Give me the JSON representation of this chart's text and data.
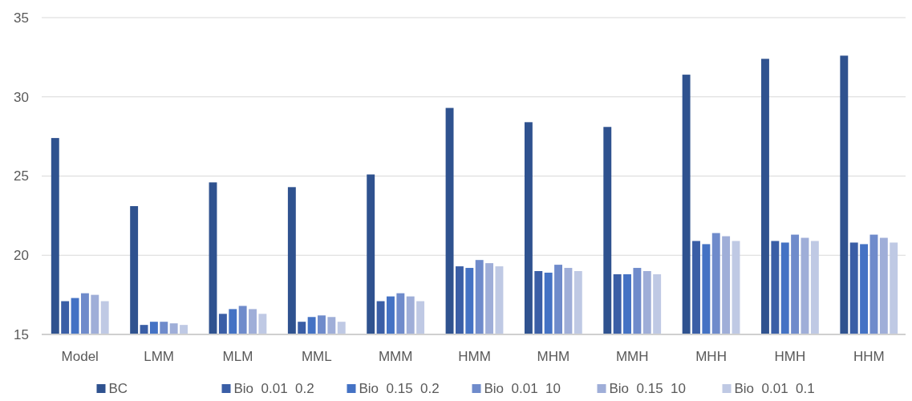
{
  "chart_data": {
    "type": "bar",
    "categories": [
      "Model",
      "LMM",
      "MLM",
      "MML",
      "MMM",
      "HMM",
      "MHM",
      "MMH",
      "MHH",
      "HMH",
      "HHM"
    ],
    "series": [
      {
        "name": "BC",
        "color": "#2f528f",
        "values": [
          27.4,
          23.1,
          24.6,
          24.3,
          25.1,
          29.3,
          28.4,
          28.1,
          31.4,
          32.4,
          32.6
        ]
      },
      {
        "name": "Bio  0.01  0.2",
        "color": "#3a5ea6",
        "values": [
          17.1,
          15.6,
          16.3,
          15.8,
          17.1,
          19.3,
          19.0,
          18.8,
          20.9,
          20.9,
          20.8
        ]
      },
      {
        "name": "Bio  0.15  0.2",
        "color": "#4472c4",
        "values": [
          17.3,
          15.8,
          16.6,
          16.1,
          17.4,
          19.2,
          18.9,
          18.8,
          20.7,
          20.8,
          20.7
        ]
      },
      {
        "name": "Bio  0.01  10",
        "color": "#6f8bcb",
        "values": [
          17.6,
          15.8,
          16.8,
          16.2,
          17.6,
          19.7,
          19.4,
          19.2,
          21.4,
          21.3,
          21.3
        ]
      },
      {
        "name": "Bio  0.15  10",
        "color": "#9faed8",
        "values": [
          17.5,
          15.7,
          16.6,
          16.1,
          17.4,
          19.5,
          19.2,
          19.0,
          21.2,
          21.1,
          21.1
        ]
      },
      {
        "name": "Bio  0.01  0.1",
        "color": "#bfc9e4",
        "values": [
          17.1,
          15.6,
          16.3,
          15.8,
          17.1,
          19.3,
          19.0,
          18.8,
          20.9,
          20.9,
          20.8
        ]
      }
    ],
    "ylim": [
      15,
      35
    ],
    "yticks": [
      15,
      20,
      25,
      30,
      35
    ],
    "grid": "y",
    "legend": "bottom"
  }
}
